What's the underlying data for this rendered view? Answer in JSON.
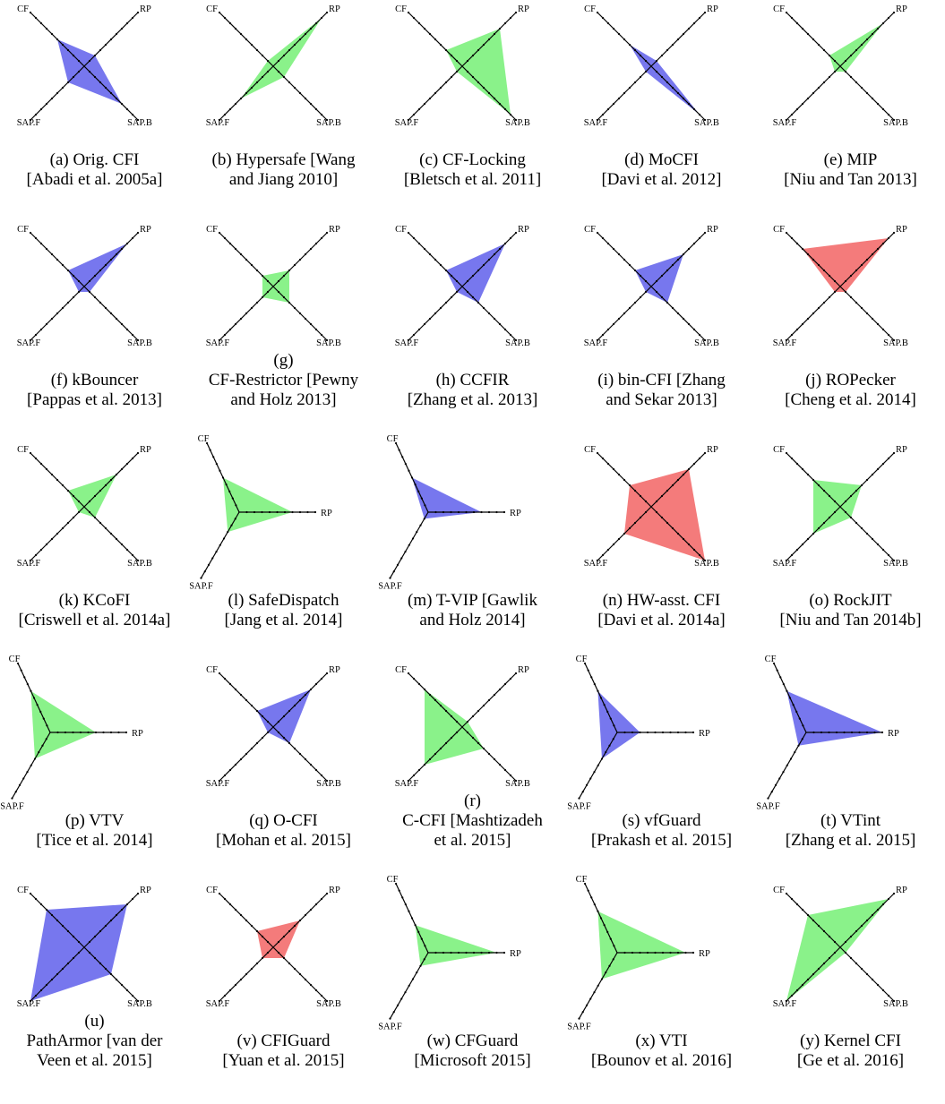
{
  "colors": {
    "green": "#8af28a",
    "blue": "#7777ee",
    "red": "#f47b7b",
    "axis": "#000000"
  },
  "chart_data": [
    {
      "type": "radar",
      "caption": [
        "(a) Orig. CFI",
        "[Abadi et al. 2005a]"
      ],
      "axes": [
        "CF",
        "RP",
        "SAP.B",
        "SAP.F"
      ],
      "values": [
        5,
        2,
        7,
        3
      ],
      "color": "blue"
    },
    {
      "type": "radar",
      "caption": [
        "(b) Hypersafe [Wang",
        "and Jiang 2010]"
      ],
      "axes": [
        "CF",
        "RP",
        "SAP.B",
        "SAP.F"
      ],
      "values": [
        1,
        9,
        2,
        6
      ],
      "color": "green"
    },
    {
      "type": "radar",
      "caption": [
        "(c) CF-Locking",
        "[Bletsch et al. 2011]"
      ],
      "axes": [
        "CF",
        "RP",
        "SAP.B",
        "SAP.F"
      ],
      "values": [
        3,
        7,
        9,
        1
      ],
      "color": "green"
    },
    {
      "type": "radar",
      "caption": [
        "(d) MoCFI",
        "[Davi et al. 2012]"
      ],
      "axes": [
        "CF",
        "RP",
        "SAP.B",
        "SAP.F"
      ],
      "values": [
        4,
        1,
        9,
        1
      ],
      "color": "blue"
    },
    {
      "type": "radar",
      "caption": [
        "(e) MIP",
        "[Niu and Tan 2013]"
      ],
      "axes": [
        "CF",
        "RP",
        "SAP.B",
        "SAP.F"
      ],
      "values": [
        2,
        8,
        1,
        1
      ],
      "color": "green"
    },
    {
      "type": "radar",
      "caption": [
        "(f) kBouncer",
        "[Pappas et al. 2013]"
      ],
      "axes": [
        "CF",
        "RP",
        "SAP.B",
        "SAP.F"
      ],
      "values": [
        3,
        8,
        1,
        1
      ],
      "color": "blue"
    },
    {
      "type": "radar",
      "caption": [
        "(g)",
        "CF-Restrictor [Pewny",
        "and Holz 2013]"
      ],
      "axes": [
        "CF",
        "RP",
        "SAP.B",
        "SAP.F"
      ],
      "values": [
        2,
        3,
        3,
        2
      ],
      "color": "green"
    },
    {
      "type": "radar",
      "caption": [
        "(h) CCFIR",
        "[Zhang et al. 2013]"
      ],
      "axes": [
        "CF",
        "RP",
        "SAP.B",
        "SAP.F"
      ],
      "values": [
        3,
        8,
        3,
        1
      ],
      "color": "blue"
    },
    {
      "type": "radar",
      "caption": [
        "(i) bin-CFI [Zhang",
        "and Sekar 2013]"
      ],
      "axes": [
        "CF",
        "RP",
        "SAP.B",
        "SAP.F"
      ],
      "values": [
        3,
        6,
        3,
        1
      ],
      "color": "blue"
    },
    {
      "type": "radar",
      "caption": [
        "(j) ROPecker",
        "[Cheng et al. 2014]"
      ],
      "axes": [
        "CF",
        "RP",
        "SAP.B",
        "SAP.F"
      ],
      "values": [
        7,
        9,
        1,
        1
      ],
      "color": "red"
    },
    {
      "type": "radar",
      "caption": [
        "(k) KCoFI",
        "[Criswell et al. 2014a]"
      ],
      "axes": [
        "CF",
        "RP",
        "SAP.B",
        "SAP.F"
      ],
      "values": [
        3,
        6,
        2,
        1
      ],
      "color": "green"
    },
    {
      "type": "radar",
      "caption": [
        "(l) SafeDispatch",
        "[Jang et al. 2014]"
      ],
      "axes": [
        "CF",
        "RP",
        "SAP.F"
      ],
      "values": [
        5,
        7,
        3
      ],
      "color": "green"
    },
    {
      "type": "radar",
      "caption": [
        "(m) T-VIP [Gawlik",
        "and Holz 2014]"
      ],
      "axes": [
        "CF",
        "RP",
        "SAP.F"
      ],
      "values": [
        5,
        7,
        1
      ],
      "color": "blue"
    },
    {
      "type": "radar",
      "caption": [
        "(n) HW-asst. CFI",
        "[Davi et al. 2014a]"
      ],
      "axes": [
        "CF",
        "RP",
        "SAP.B",
        "SAP.F"
      ],
      "values": [
        4,
        7,
        10,
        5
      ],
      "color": "red"
    },
    {
      "type": "radar",
      "caption": [
        "(o) RockJIT",
        "[Niu and Tan 2014b]"
      ],
      "axes": [
        "CF",
        "RP",
        "SAP.B",
        "SAP.F"
      ],
      "values": [
        5,
        4,
        2,
        5
      ],
      "color": "green"
    },
    {
      "type": "radar",
      "caption": [
        "(p) VTV",
        "[Tice et al. 2014]"
      ],
      "axes": [
        "CF",
        "RP",
        "SAP.F"
      ],
      "values": [
        6,
        6,
        4
      ],
      "color": "green"
    },
    {
      "type": "radar",
      "caption": [
        "(q) O-CFI",
        "[Mohan et al. 2015]"
      ],
      "axes": [
        "CF",
        "RP",
        "SAP.B",
        "SAP.F"
      ],
      "values": [
        3,
        7,
        3,
        1
      ],
      "color": "blue"
    },
    {
      "type": "radar",
      "caption": [
        "(r)",
        "C-CFI [Mashtizadeh",
        "et al. 2015]"
      ],
      "axes": [
        "CF",
        "RP",
        "SAP.B",
        "SAP.F"
      ],
      "values": [
        7,
        1,
        4,
        7
      ],
      "color": "green"
    },
    {
      "type": "radar",
      "caption": [
        "(s) vfGuard",
        "[Prakash et al. 2015]"
      ],
      "axes": [
        "CF",
        "RP",
        "SAP.F"
      ],
      "values": [
        6,
        3,
        4
      ],
      "color": "blue"
    },
    {
      "type": "radar",
      "caption": [
        "(t) VTint",
        "[Zhang et al. 2015]"
      ],
      "axes": [
        "CF",
        "RP",
        "SAP.F"
      ],
      "values": [
        6,
        10,
        2
      ],
      "color": "blue"
    },
    {
      "type": "radar",
      "caption": [
        "(u)",
        "PathArmor [van der",
        "Veen et al. 2015]"
      ],
      "axes": [
        "CF",
        "RP",
        "SAP.B",
        "SAP.F"
      ],
      "values": [
        7,
        8,
        5,
        10
      ],
      "color": "blue"
    },
    {
      "type": "radar",
      "caption": [
        "(v) CFIGuard",
        "[Yuan et al. 2015]"
      ],
      "axes": [
        "CF",
        "RP",
        "SAP.B",
        "SAP.F"
      ],
      "values": [
        3,
        5,
        2,
        2
      ],
      "color": "red"
    },
    {
      "type": "radar",
      "caption": [
        "(w) CFGuard",
        "[Microsoft 2015]"
      ],
      "axes": [
        "CF",
        "RP",
        "SAP.F"
      ],
      "values": [
        4,
        9,
        2
      ],
      "color": "green"
    },
    {
      "type": "radar",
      "caption": [
        "(x) VTI",
        "[Bounov et al. 2016]"
      ],
      "axes": [
        "CF",
        "RP",
        "SAP.F"
      ],
      "values": [
        6,
        9,
        4
      ],
      "color": "green"
    },
    {
      "type": "radar",
      "caption": [
        "(y) Kernel CFI",
        "[Ge et al. 2016]"
      ],
      "axes": [
        "CF",
        "RP",
        "SAP.B",
        "SAP.F"
      ],
      "values": [
        6,
        9,
        1,
        10
      ],
      "color": "green"
    }
  ]
}
